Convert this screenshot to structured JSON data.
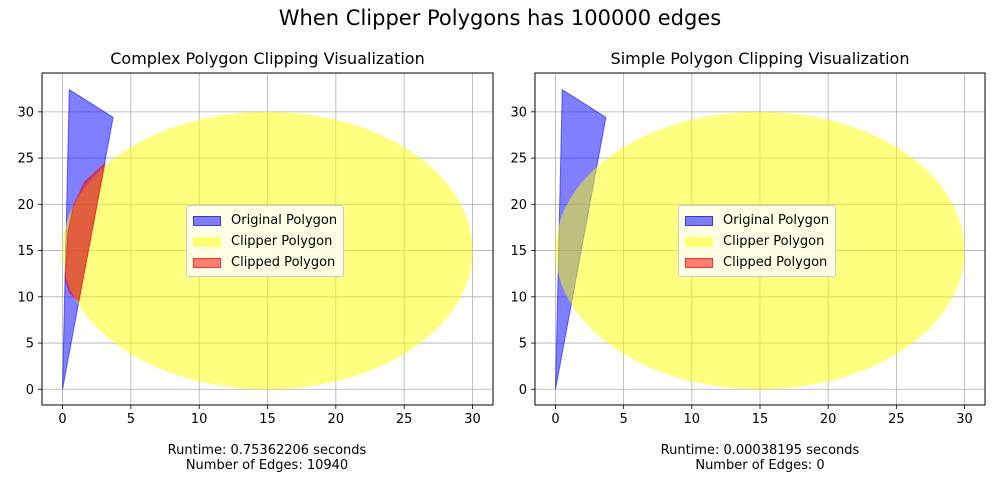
{
  "suptitle": "When Clipper Polygons has 100000 edges",
  "chart_data": [
    {
      "type": "area",
      "title": "Complex Polygon Clipping Visualization",
      "xlim": [
        -1.5,
        31.5
      ],
      "ylim": [
        -1.7,
        34.2
      ],
      "xticks": [
        0,
        5,
        10,
        15,
        20,
        25,
        30
      ],
      "yticks": [
        0,
        5,
        10,
        15,
        20,
        25,
        30
      ],
      "grid": true,
      "legend_position": "center",
      "series": [
        {
          "name": "Original Polygon",
          "kind": "polygon",
          "color": "#0000ff",
          "alpha": 0.5,
          "points": [
            [
              0,
              0
            ],
            [
              0.5,
              32.4
            ],
            [
              3.7,
              29.4
            ]
          ]
        },
        {
          "name": "Clipper Polygon",
          "kind": "ellipse",
          "color": "#ffff00",
          "alpha": 0.5,
          "center": [
            15,
            15
          ],
          "rx": 15,
          "ry": 15
        },
        {
          "name": "Clipped Polygon",
          "kind": "polygon",
          "color": "#ff0000",
          "alpha": 0.5,
          "points": [
            [
              0.2,
              12
            ],
            [
              0.4,
              17
            ],
            [
              0.8,
              19.8
            ],
            [
              1.6,
              22.4
            ],
            [
              3.1,
              24.4
            ],
            [
              1.2,
              9.5
            ],
            [
              0.5,
              10.5
            ],
            [
              0.2,
              12
            ]
          ]
        }
      ],
      "footer": {
        "runtime": "Runtime: 0.75362206 seconds",
        "edges": "Number of Edges: 10940"
      }
    },
    {
      "type": "area",
      "title": "Simple Polygon Clipping Visualization",
      "xlim": [
        -1.5,
        31.5
      ],
      "ylim": [
        -1.7,
        34.2
      ],
      "xticks": [
        0,
        5,
        10,
        15,
        20,
        25,
        30
      ],
      "yticks": [
        0,
        5,
        10,
        15,
        20,
        25,
        30
      ],
      "grid": true,
      "legend_position": "center",
      "series": [
        {
          "name": "Original Polygon",
          "kind": "polygon",
          "color": "#0000ff",
          "alpha": 0.5,
          "points": [
            [
              0,
              0
            ],
            [
              0.5,
              32.4
            ],
            [
              3.7,
              29.4
            ]
          ]
        },
        {
          "name": "Clipper Polygon",
          "kind": "ellipse",
          "color": "#ffff00",
          "alpha": 0.5,
          "center": [
            15,
            15
          ],
          "rx": 15,
          "ry": 15
        },
        {
          "name": "Clipped Polygon",
          "kind": "polygon",
          "color": "#ff0000",
          "alpha": 0.5,
          "points": []
        }
      ],
      "footer": {
        "runtime": "Runtime: 0.00038195 seconds",
        "edges": "Number of Edges: 0"
      }
    }
  ]
}
